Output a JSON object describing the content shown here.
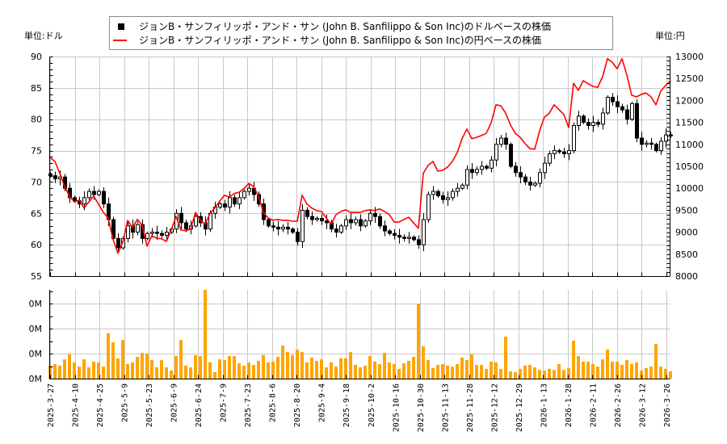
{
  "legend": {
    "series_usd_label": "ジョンB・サンフィリッポ・アンド・サン (John B. Sanfilippo & Son Inc)のドルベースの株価",
    "series_jpy_label": "ジョンB・サンフィリッポ・アンド・サン (John B. Sanfilippo & Son Inc)の円ベースの株価"
  },
  "axes": {
    "left_unit": "単位:ドル",
    "right_unit": "単位:円"
  },
  "colors": {
    "usd_candle": "#000000",
    "jpy_line": "#ff0000",
    "volume": "#ffa500",
    "grid": "#c8c8c8",
    "axis": "#000000"
  },
  "chart_data": [
    {
      "type": "line",
      "title": "",
      "xlabel": "",
      "ylabel": "単位:ドル",
      "y2label": "単位:円",
      "ylim": [
        55,
        90
      ],
      "y2lim": [
        8000,
        13000
      ],
      "yticks": [
        55,
        60,
        65,
        70,
        75,
        80,
        85,
        90
      ],
      "y2ticks": [
        8000,
        8500,
        9000,
        9500,
        10000,
        10500,
        11000,
        11500,
        12000,
        12500,
        13000
      ],
      "grid": true,
      "legend_position": "top",
      "x_ticks": [
        "2025-3-27",
        "2025-4-10",
        "2025-4-25",
        "2025-5-9",
        "2025-5-23",
        "2025-6-9",
        "2025-6-24",
        "2025-7-9",
        "2025-7-23",
        "2025-8-6",
        "2025-8-20",
        "2025-9-4",
        "2025-9-18",
        "2025-10-2",
        "2025-10-16",
        "2025-10-30",
        "2025-11-13",
        "2025-11-28",
        "2025-12-12",
        "2025-12-29",
        "2026-1-13",
        "2026-1-28",
        "2026-2-11",
        "2026-2-26",
        "2026-3-12",
        "2026-3-26"
      ],
      "series": [
        {
          "name": "ジョンB・サンフィリッポ・アンド・サン (John B. Sanfilippo & Son Inc)のドルベースの株価",
          "style": "candlestick",
          "axis": "left",
          "color": "#000000",
          "values": [
            71,
            70.5,
            70.8,
            69,
            67.5,
            67,
            66.5,
            67.5,
            68.5,
            68,
            68.5,
            66.5,
            64,
            61,
            59.5,
            61,
            63,
            62,
            63.2,
            61,
            61.8,
            62,
            61.8,
            61.5,
            62,
            62.5,
            65,
            63.5,
            62.5,
            63,
            64.5,
            63.5,
            62.5,
            65,
            66,
            66.5,
            66,
            67.5,
            66.5,
            67.5,
            68.5,
            69,
            68,
            66.5,
            64,
            63,
            62.8,
            62.5,
            62.8,
            62.5,
            62,
            60.5,
            65.5,
            64.5,
            64,
            64.2,
            63.8,
            63.5,
            62.5,
            62,
            63,
            64,
            63.5,
            64,
            63,
            63.8,
            65,
            64.5,
            63,
            62.2,
            61.8,
            61.5,
            61.2,
            61,
            61.2,
            60.8,
            60,
            64,
            68,
            68.5,
            67.8,
            67.2,
            67.5,
            68.5,
            69,
            69.5,
            72,
            71.5,
            72,
            72.5,
            72.2,
            73.5,
            76,
            77,
            76,
            72.5,
            71.5,
            70.8,
            70,
            69.5,
            69.8,
            71.5,
            73,
            74.5,
            75,
            74.8,
            74.5,
            75,
            79,
            80.5,
            79.5,
            79,
            79.5,
            79.2,
            81,
            83.5,
            82.8,
            82,
            81.5,
            80,
            82.5,
            77,
            76,
            76.2,
            76,
            75,
            76.5,
            77.5,
            77.5
          ]
        },
        {
          "name": "ジョンB・サンフィリッポ・アンド・サン (John B. Sanfilippo & Son Inc)の円ベースの株価",
          "style": "line",
          "axis": "right",
          "color": "#ff0000",
          "values": [
            10700,
            10610,
            10340,
            10040,
            9820,
            9690,
            9730,
            9550,
            9690,
            9820,
            9640,
            9450,
            9320,
            8830,
            8520,
            8770,
            9270,
            9100,
            9290,
            9160,
            8680,
            8920,
            8860,
            8850,
            8790,
            9050,
            9360,
            9050,
            9030,
            9070,
            9450,
            9270,
            9180,
            9430,
            9550,
            9710,
            9840,
            9800,
            9880,
            9910,
            9990,
            10110,
            10040,
            9820,
            9450,
            9320,
            9270,
            9290,
            9270,
            9270,
            9250,
            9250,
            9840,
            9640,
            9550,
            9490,
            9470,
            9320,
            9180,
            9400,
            9470,
            9510,
            9450,
            9450,
            9450,
            9490,
            9510,
            9490,
            9530,
            9470,
            9400,
            9230,
            9230,
            9290,
            9340,
            9210,
            9090,
            10340,
            10520,
            10610,
            10390,
            10410,
            10480,
            10610,
            10810,
            11130,
            11350,
            11130,
            11160,
            11200,
            11250,
            11490,
            11900,
            11880,
            11710,
            11440,
            11250,
            11160,
            11020,
            10900,
            10890,
            11310,
            11620,
            11710,
            11900,
            11790,
            11680,
            11380,
            12390,
            12230,
            12450,
            12380,
            12320,
            12300,
            12540,
            12950,
            12870,
            12720,
            12950,
            12580,
            12120,
            12080,
            12140,
            12170,
            12080,
            11900,
            12210,
            12340,
            12450
          ]
        }
      ]
    },
    {
      "type": "bar",
      "title": "",
      "xlabel": "",
      "ylabel": "",
      "ylim": [
        0,
        355
      ],
      "yticks": [
        0,
        100,
        200,
        300
      ],
      "ytick_labels": [
        "0M",
        "0M",
        "0M",
        "0M"
      ],
      "grid": true,
      "x_ticks": [
        "2025-3-27",
        "2025-4-10",
        "2025-4-25",
        "2025-5-9",
        "2025-5-23",
        "2025-6-9",
        "2025-6-24",
        "2025-7-9",
        "2025-7-23",
        "2025-8-6",
        "2025-8-20",
        "2025-9-4",
        "2025-9-18",
        "2025-10-2",
        "2025-10-16",
        "2025-10-30",
        "2025-11-13",
        "2025-11-28",
        "2025-12-12",
        "2025-12-29",
        "2026-1-13",
        "2026-1-28",
        "2026-2-11",
        "2026-2-26",
        "2026-3-12",
        "2026-3-26"
      ],
      "series": [
        {
          "name": "出来高",
          "color": "#ffa500",
          "values": [
            52,
            58,
            52,
            77,
            97,
            65,
            48,
            77,
            45,
            68,
            65,
            48,
            181,
            145,
            81,
            155,
            58,
            65,
            87,
            103,
            100,
            74,
            45,
            74,
            45,
            32,
            90,
            155,
            52,
            45,
            94,
            90,
            355,
            65,
            26,
            77,
            74,
            90,
            90,
            61,
            52,
            65,
            55,
            71,
            94,
            65,
            68,
            87,
            132,
            106,
            94,
            116,
            106,
            65,
            84,
            71,
            77,
            45,
            65,
            48,
            81,
            81,
            106,
            55,
            45,
            52,
            90,
            68,
            58,
            103,
            65,
            58,
            39,
            61,
            71,
            87,
            300,
            129,
            74,
            42,
            55,
            58,
            52,
            48,
            58,
            84,
            74,
            97,
            55,
            55,
            39,
            68,
            65,
            39,
            168,
            29,
            26,
            39,
            52,
            55,
            45,
            35,
            32,
            39,
            35,
            58,
            35,
            42,
            152,
            90,
            68,
            68,
            58,
            48,
            77,
            116,
            68,
            68,
            55,
            74,
            58,
            65,
            32,
            42,
            48,
            139,
            48,
            39,
            29
          ]
        }
      ]
    }
  ]
}
